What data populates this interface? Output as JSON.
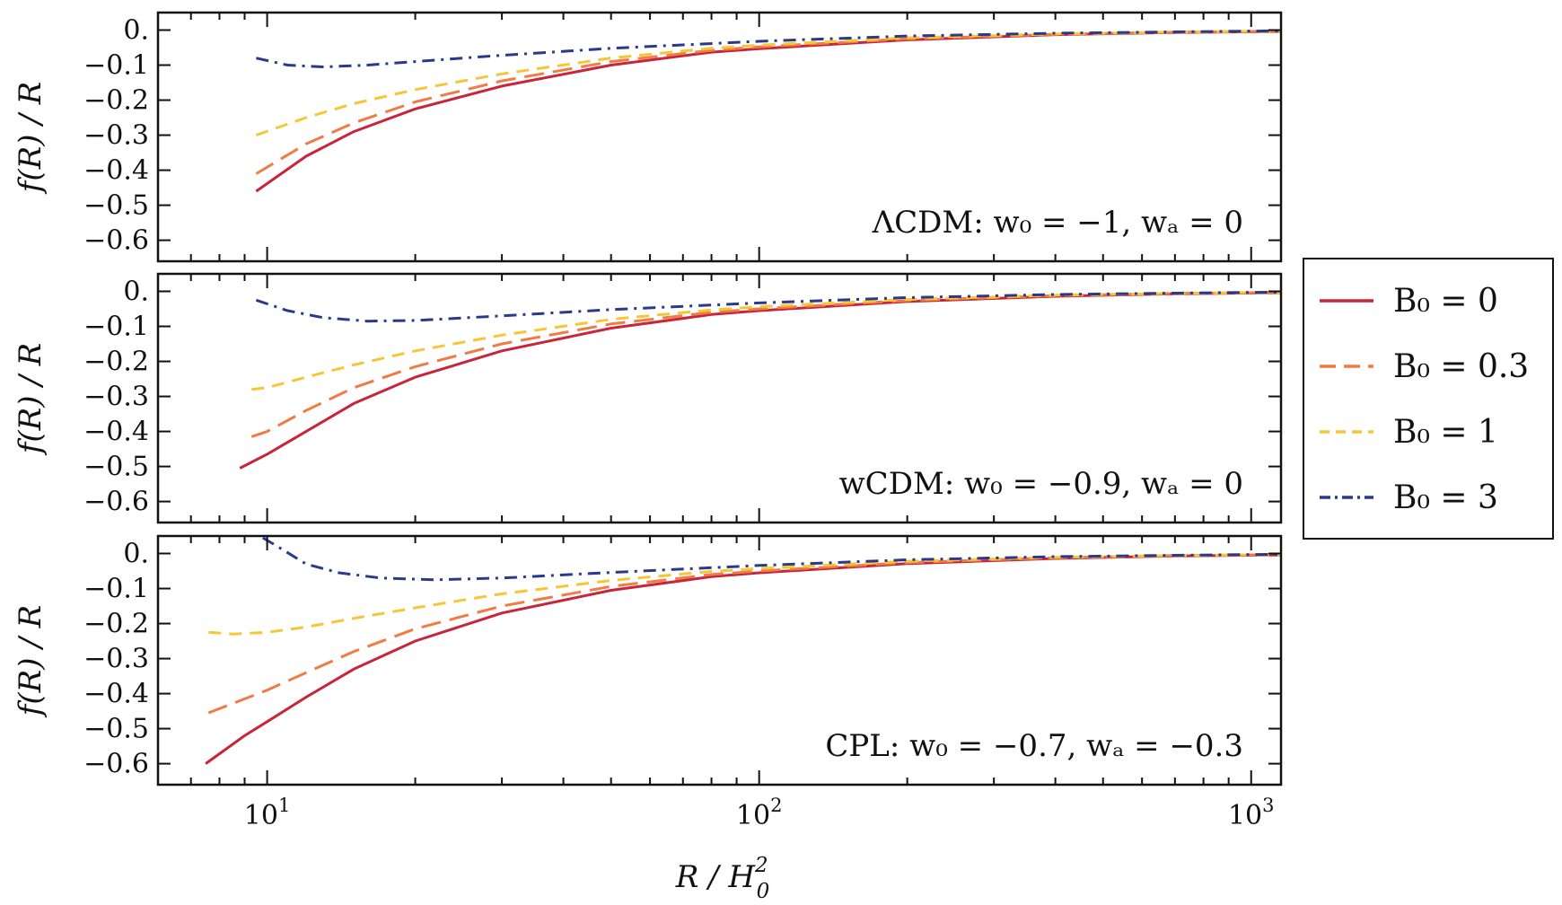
{
  "chart_data": {
    "type": "line",
    "x_scale": "log",
    "xlim": [
      6,
      1150
    ],
    "ylim": [
      -0.66,
      0.05
    ],
    "xlabel": "R / H",
    "xlabel_sup": "2",
    "xlabel_sub": "0",
    "ylabel": "f(R) / R",
    "grid": false,
    "legend_position": "outside-right",
    "x_ticks": [
      {
        "value": 10,
        "base": "10",
        "exp": "1"
      },
      {
        "value": 100,
        "base": "10",
        "exp": "2"
      },
      {
        "value": 1000,
        "base": "10",
        "exp": "3"
      }
    ],
    "y_ticks": [
      {
        "value": 0,
        "label": "0."
      },
      {
        "value": -0.1,
        "label": "−0.1"
      },
      {
        "value": -0.2,
        "label": "−0.2"
      },
      {
        "value": -0.3,
        "label": "−0.3"
      },
      {
        "value": -0.4,
        "label": "−0.4"
      },
      {
        "value": -0.5,
        "label": "−0.5"
      },
      {
        "value": -0.6,
        "label": "−0.6"
      }
    ],
    "legend": [
      {
        "label": "B₀ = 0",
        "color": "#c8243a",
        "dash": "solid"
      },
      {
        "label": "B₀ = 0.3",
        "color": "#ef7b45",
        "dash": "dashed"
      },
      {
        "label": "B₀ = 1",
        "color": "#f7c636",
        "dash": "short-dashed"
      },
      {
        "label": "B₀ = 3",
        "color": "#2a3a8a",
        "dash": "dash-dot"
      }
    ],
    "panels": [
      {
        "annotation": "ΛCDM: w₀ = −1, wₐ = 0",
        "series": [
          {
            "points": [
              [
                9.5,
                -0.46
              ],
              [
                12,
                -0.36
              ],
              [
                15,
                -0.29
              ],
              [
                20,
                -0.225
              ],
              [
                30,
                -0.16
              ],
              [
                50,
                -0.1
              ],
              [
                80,
                -0.063
              ],
              [
                100,
                -0.053
              ],
              [
                200,
                -0.028
              ],
              [
                400,
                -0.013
              ],
              [
                700,
                -0.007
              ],
              [
                1150,
                -0.004
              ]
            ]
          },
          {
            "points": [
              [
                9.5,
                -0.41
              ],
              [
                12,
                -0.325
              ],
              [
                15,
                -0.265
              ],
              [
                20,
                -0.205
              ],
              [
                30,
                -0.145
              ],
              [
                50,
                -0.09
              ],
              [
                80,
                -0.058
              ],
              [
                100,
                -0.048
              ],
              [
                200,
                -0.025
              ],
              [
                400,
                -0.012
              ],
              [
                700,
                -0.006
              ],
              [
                1150,
                -0.003
              ]
            ]
          },
          {
            "points": [
              [
                9.5,
                -0.3
              ],
              [
                12,
                -0.25
              ],
              [
                15,
                -0.21
              ],
              [
                20,
                -0.17
              ],
              [
                30,
                -0.125
              ],
              [
                50,
                -0.08
              ],
              [
                80,
                -0.052
              ],
              [
                100,
                -0.043
              ],
              [
                200,
                -0.022
              ],
              [
                400,
                -0.011
              ],
              [
                700,
                -0.006
              ],
              [
                1150,
                -0.003
              ]
            ]
          },
          {
            "points": [
              [
                9.5,
                -0.08
              ],
              [
                11,
                -0.1
              ],
              [
                13,
                -0.105
              ],
              [
                16,
                -0.1
              ],
              [
                20,
                -0.09
              ],
              [
                30,
                -0.072
              ],
              [
                50,
                -0.052
              ],
              [
                100,
                -0.032
              ],
              [
                200,
                -0.017
              ],
              [
                400,
                -0.009
              ],
              [
                700,
                -0.005
              ],
              [
                1150,
                -0.002
              ]
            ]
          }
        ]
      },
      {
        "annotation": "wCDM: w₀ = −0.9, wₐ = 0",
        "series": [
          {
            "points": [
              [
                8.8,
                -0.505
              ],
              [
                10,
                -0.465
              ],
              [
                12,
                -0.4
              ],
              [
                15,
                -0.32
              ],
              [
                20,
                -0.245
              ],
              [
                30,
                -0.17
              ],
              [
                50,
                -0.105
              ],
              [
                80,
                -0.066
              ],
              [
                100,
                -0.055
              ],
              [
                200,
                -0.029
              ],
              [
                400,
                -0.014
              ],
              [
                700,
                -0.007
              ],
              [
                1150,
                -0.004
              ]
            ]
          },
          {
            "points": [
              [
                9.3,
                -0.415
              ],
              [
                10,
                -0.4
              ],
              [
                12,
                -0.34
              ],
              [
                15,
                -0.275
              ],
              [
                20,
                -0.215
              ],
              [
                30,
                -0.15
              ],
              [
                50,
                -0.093
              ],
              [
                80,
                -0.06
              ],
              [
                100,
                -0.05
              ],
              [
                200,
                -0.026
              ],
              [
                400,
                -0.012
              ],
              [
                700,
                -0.006
              ],
              [
                1150,
                -0.003
              ]
            ]
          },
          {
            "points": [
              [
                9.3,
                -0.28
              ],
              [
                10,
                -0.275
              ],
              [
                12,
                -0.245
              ],
              [
                15,
                -0.21
              ],
              [
                20,
                -0.17
              ],
              [
                30,
                -0.125
              ],
              [
                50,
                -0.08
              ],
              [
                80,
                -0.053
              ],
              [
                100,
                -0.044
              ],
              [
                200,
                -0.023
              ],
              [
                400,
                -0.011
              ],
              [
                700,
                -0.006
              ],
              [
                1150,
                -0.003
              ]
            ]
          },
          {
            "points": [
              [
                9.5,
                -0.025
              ],
              [
                11,
                -0.055
              ],
              [
                13,
                -0.075
              ],
              [
                16,
                -0.085
              ],
              [
                20,
                -0.083
              ],
              [
                30,
                -0.07
              ],
              [
                50,
                -0.052
              ],
              [
                100,
                -0.033
              ],
              [
                200,
                -0.018
              ],
              [
                400,
                -0.009
              ],
              [
                700,
                -0.005
              ],
              [
                1150,
                -0.002
              ]
            ]
          }
        ]
      },
      {
        "annotation": "CPL: w₀ = −0.7, wₐ = −0.3",
        "series": [
          {
            "points": [
              [
                7.5,
                -0.6
              ],
              [
                9,
                -0.52
              ],
              [
                10,
                -0.48
              ],
              [
                12,
                -0.41
              ],
              [
                15,
                -0.33
              ],
              [
                20,
                -0.25
              ],
              [
                30,
                -0.17
              ],
              [
                50,
                -0.105
              ],
              [
                80,
                -0.066
              ],
              [
                100,
                -0.055
              ],
              [
                200,
                -0.029
              ],
              [
                400,
                -0.014
              ],
              [
                700,
                -0.007
              ],
              [
                1150,
                -0.004
              ]
            ]
          },
          {
            "points": [
              [
                7.6,
                -0.455
              ],
              [
                9,
                -0.415
              ],
              [
                10,
                -0.39
              ],
              [
                12,
                -0.34
              ],
              [
                15,
                -0.28
              ],
              [
                20,
                -0.215
              ],
              [
                30,
                -0.15
              ],
              [
                50,
                -0.094
              ],
              [
                80,
                -0.06
              ],
              [
                100,
                -0.05
              ],
              [
                200,
                -0.026
              ],
              [
                400,
                -0.012
              ],
              [
                700,
                -0.006
              ],
              [
                1150,
                -0.003
              ]
            ]
          },
          {
            "points": [
              [
                7.6,
                -0.225
              ],
              [
                8.5,
                -0.23
              ],
              [
                10,
                -0.225
              ],
              [
                12,
                -0.21
              ],
              [
                15,
                -0.185
              ],
              [
                20,
                -0.155
              ],
              [
                30,
                -0.115
              ],
              [
                50,
                -0.077
              ],
              [
                80,
                -0.051
              ],
              [
                100,
                -0.043
              ],
              [
                200,
                -0.022
              ],
              [
                400,
                -0.011
              ],
              [
                700,
                -0.006
              ],
              [
                1150,
                -0.003
              ]
            ]
          },
          {
            "points": [
              [
                9.8,
                0.045
              ],
              [
                10.5,
                0.02
              ],
              [
                12,
                -0.03
              ],
              [
                14,
                -0.055
              ],
              [
                17,
                -0.07
              ],
              [
                22,
                -0.075
              ],
              [
                30,
                -0.07
              ],
              [
                50,
                -0.054
              ],
              [
                100,
                -0.034
              ],
              [
                200,
                -0.018
              ],
              [
                400,
                -0.009
              ],
              [
                700,
                -0.005
              ],
              [
                1150,
                -0.002
              ]
            ]
          }
        ]
      }
    ]
  }
}
